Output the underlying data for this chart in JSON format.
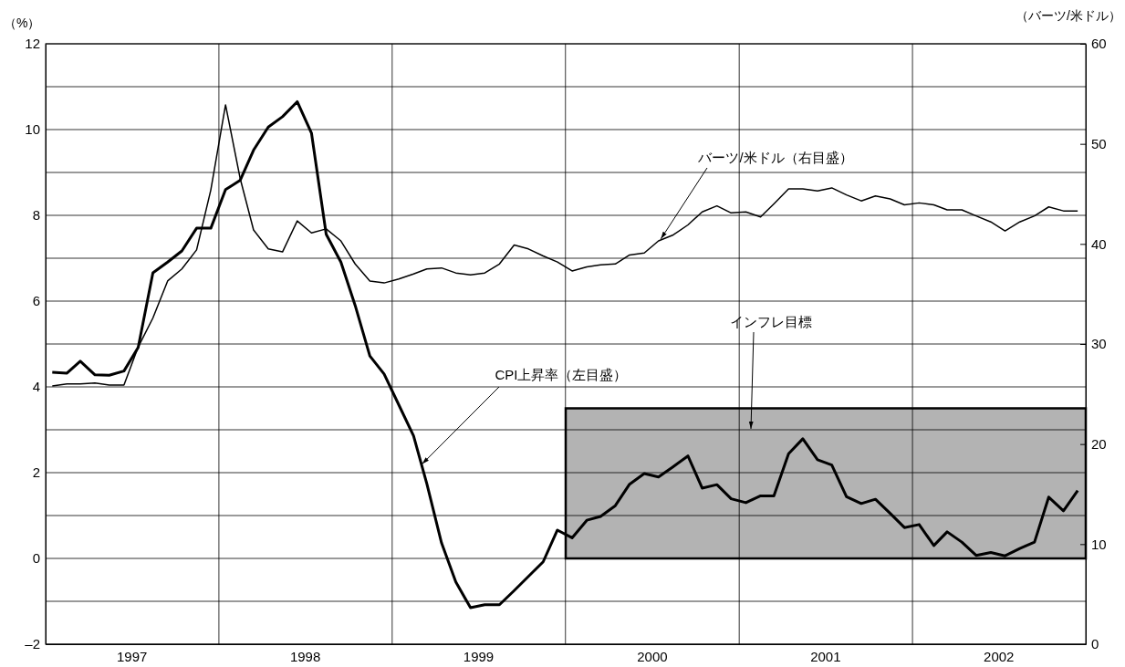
{
  "chart_data": {
    "type": "line",
    "x": [
      "1997-01-15",
      "1997-02-15",
      "1997-03-15",
      "1997-04-15",
      "1997-05-15",
      "1997-06-15",
      "1997-07-15",
      "1997-08-15",
      "1997-09-15",
      "1997-10-15",
      "1997-11-15",
      "1997-12-15",
      "1998-01-15",
      "1998-02-15",
      "1998-03-15",
      "1998-04-15",
      "1998-05-15",
      "1998-06-15",
      "1998-07-15",
      "1998-08-15",
      "1998-09-15",
      "1998-10-15",
      "1998-11-15",
      "1998-12-15",
      "1999-01-15",
      "1999-02-15",
      "1999-03-15",
      "1999-04-15",
      "1999-05-15",
      "1999-06-15",
      "1999-07-15",
      "1999-08-15",
      "1999-09-15",
      "1999-10-15",
      "1999-11-15",
      "1999-12-15",
      "2000-01-15",
      "2000-02-15",
      "2000-03-15",
      "2000-04-15",
      "2000-05-15",
      "2000-06-15",
      "2000-07-15",
      "2000-08-15",
      "2000-09-15",
      "2000-10-15",
      "2000-11-15",
      "2000-12-15",
      "2001-01-15",
      "2001-02-15",
      "2001-03-15",
      "2001-04-15",
      "2001-05-15",
      "2001-06-15",
      "2001-07-15",
      "2001-08-15",
      "2001-09-15",
      "2001-10-15",
      "2001-11-15",
      "2001-12-15",
      "2002-01-15",
      "2002-02-15",
      "2002-03-15",
      "2002-04-15",
      "2002-05-15",
      "2002-06-15",
      "2002-07-15",
      "2002-08-15",
      "2002-09-15",
      "2002-10-15",
      "2002-11-15",
      "2002-12-15"
    ],
    "series": [
      {
        "color": "#000000",
        "values": [
          4.34,
          4.32,
          4.6,
          4.28,
          4.27,
          4.37,
          4.92,
          6.66,
          6.91,
          7.17,
          7.7,
          7.7,
          8.6,
          8.82,
          9.52,
          10.06,
          10.3,
          10.65,
          9.92,
          7.56,
          6.91,
          5.9,
          4.72,
          4.3,
          3.58,
          2.86,
          1.74,
          0.36,
          -0.55,
          -1.15,
          -1.08,
          -1.08,
          -0.75,
          -0.42,
          -0.08,
          0.66,
          0.48,
          0.89,
          0.98,
          1.23,
          1.73,
          1.98,
          1.9,
          2.14,
          2.39,
          1.64,
          1.72,
          1.39,
          1.3,
          1.46,
          1.46,
          2.44,
          2.79,
          2.3,
          2.18,
          1.44,
          1.28,
          1.38,
          1.05,
          0.72,
          0.79,
          0.3,
          0.62,
          0.38,
          0.07,
          0.14,
          0.06,
          0.23,
          0.38,
          1.43,
          1.11,
          1.58
        ]
      },
      {
        "color": "#000000",
        "axis": "y2",
        "values": [
          25.8,
          26.0,
          26.0,
          26.1,
          25.9,
          25.9,
          29.7,
          32.6,
          36.3,
          37.5,
          39.4,
          45.4,
          53.9,
          46.5,
          41.4,
          39.5,
          39.2,
          42.3,
          41.1,
          41.5,
          40.3,
          38.0,
          36.3,
          36.1,
          36.5,
          37.0,
          37.5,
          37.6,
          37.1,
          36.9,
          37.1,
          38.0,
          39.9,
          39.5,
          38.8,
          38.2,
          37.3,
          37.7,
          37.9,
          38.0,
          38.9,
          39.1,
          40.3,
          40.9,
          41.9,
          43.2,
          43.8,
          43.1,
          43.2,
          42.7,
          44.0,
          45.5,
          45.5,
          45.3,
          45.6,
          44.9,
          44.3,
          44.8,
          44.5,
          43.9,
          44.1,
          43.9,
          43.4,
          43.4,
          42.8,
          42.2,
          41.3,
          42.2,
          42.8,
          43.7,
          43.3,
          43.3
        ]
      }
    ],
    "xlim": [
      "1997-01-01",
      "2003-01-01"
    ],
    "xticks": [
      {
        "value": "1997-07-01",
        "label": "1997"
      },
      {
        "value": "1998-01-01",
        "label": null
      },
      {
        "value": "1998-07-01",
        "label": "1998"
      },
      {
        "value": "1999-01-01",
        "label": null
      },
      {
        "value": "1999-07-01",
        "label": "1999"
      },
      {
        "value": "2000-01-01",
        "label": null
      },
      {
        "value": "2000-07-01",
        "label": "2000"
      },
      {
        "value": "2001-01-01",
        "label": null
      },
      {
        "value": "2001-07-01",
        "label": "2001"
      },
      {
        "value": "2002-01-01",
        "label": null
      },
      {
        "value": "2002-07-01",
        "label": "2002"
      }
    ],
    "ylim": [
      -2,
      12
    ],
    "yticks": [
      {
        "value": -2,
        "label": "–2"
      },
      {
        "value": -1,
        "label": null
      },
      0,
      {
        "value": 1,
        "label": null
      },
      2,
      {
        "value": 3,
        "label": null
      },
      4,
      {
        "value": 5,
        "label": null
      },
      6,
      {
        "value": 7,
        "label": null
      },
      8,
      {
        "value": 9,
        "label": null
      },
      10,
      {
        "value": 11,
        "label": null
      },
      12
    ],
    "y2lim": [
      0,
      60
    ],
    "y2ticks": [
      0,
      10,
      20,
      30,
      40,
      50,
      60
    ],
    "ylabel": "（%）",
    "y2label": "（バーツ/米ドル）",
    "grid": true,
    "bands": [
      {
        "axis": "y",
        "from": 0,
        "to": 3.5,
        "label": "インフレ目標",
        "color": "#b3b3b3"
      }
    ],
    "annotations": [
      {
        "text": "バーツ/米ドル（右目盛）",
        "x": "2000-07-20",
        "y": 7.45
      },
      {
        "text": "CPI上昇率（左目盛）",
        "x": "1999-03-05",
        "y": 2.2
      }
    ]
  }
}
